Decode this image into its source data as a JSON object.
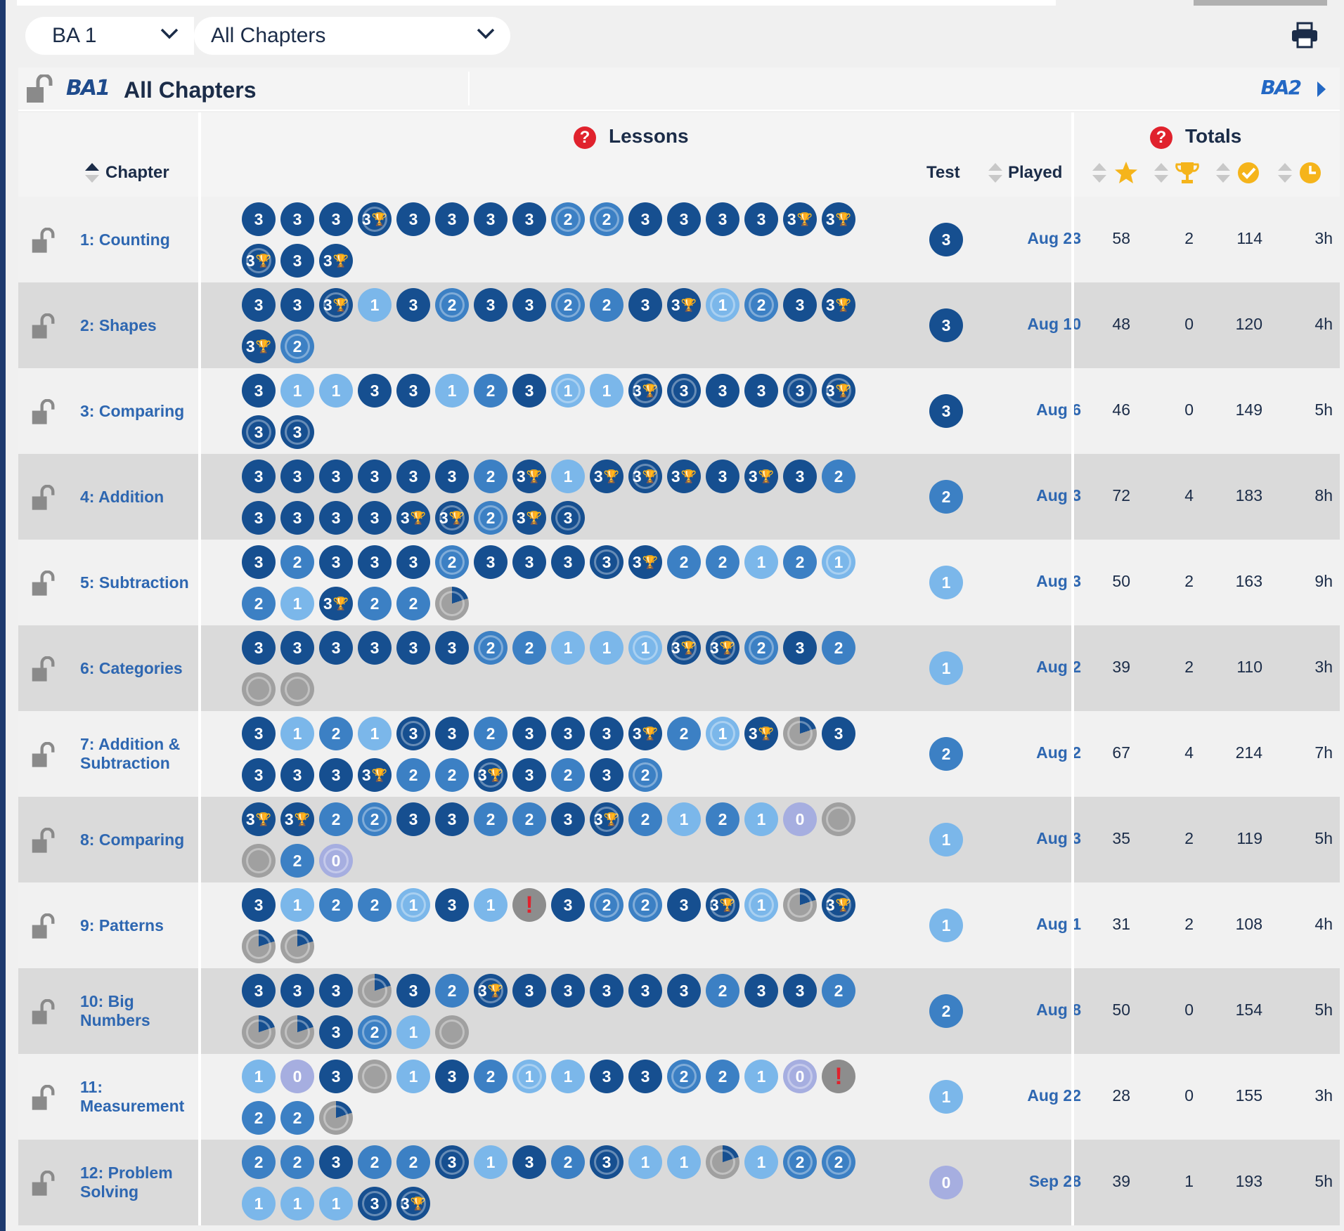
{
  "selectors": {
    "grade": "BA 1",
    "chapter": "All Chapters"
  },
  "subheader": {
    "logo_current": "BA1",
    "title": "All Chapters",
    "logo_next": "BA2"
  },
  "table": {
    "headers": {
      "chapter": "Chapter",
      "lessons": "Lessons",
      "test": "Test",
      "played": "Played",
      "totals": "Totals"
    },
    "totals_icons": [
      "star-icon",
      "trophy-icon",
      "check-icon",
      "clock-icon"
    ],
    "level_colors": {
      "3": "#164f90",
      "2": "#3c80c4",
      "1": "#7bb7ea",
      "0": "#a6aee0",
      "none": "#a0a0a0"
    },
    "rows": [
      {
        "chapter": "1: Counting",
        "test": "3",
        "played": "Aug 23",
        "stars": "58",
        "trophies": "2",
        "checks": "114",
        "time": "3h",
        "lessons": [
          "3",
          "3",
          "3",
          "3T*",
          "3",
          "3",
          "3",
          "3",
          "2*",
          "2*",
          "3",
          "3",
          "3",
          "3",
          "3T",
          "3G",
          "3T*",
          "3",
          "3G"
        ]
      },
      {
        "chapter": "2: Shapes",
        "test": "3",
        "played": "Aug 10",
        "stars": "48",
        "trophies": "0",
        "checks": "120",
        "time": "4h",
        "lessons": [
          "3",
          "3",
          "3T*",
          "1",
          "3",
          "2*",
          "3",
          "3",
          "2*",
          "2",
          "3",
          "3T",
          "1*",
          "2*",
          "3",
          "3T",
          "3T",
          "2*"
        ]
      },
      {
        "chapter": "3: Comparing",
        "test": "3",
        "played": "Aug 6",
        "stars": "46",
        "trophies": "0",
        "checks": "149",
        "time": "5h",
        "lessons": [
          "3",
          "1",
          "1",
          "3",
          "3",
          "1",
          "2",
          "3",
          "1*",
          "1",
          "3T*",
          "3*",
          "3",
          "3",
          "3*",
          "3T*",
          "3*",
          "3*"
        ]
      },
      {
        "chapter": "4: Addition",
        "test": "2",
        "played": "Aug 3",
        "stars": "72",
        "trophies": "4",
        "checks": "183",
        "time": "8h",
        "lessons": [
          "3",
          "3",
          "3",
          "3",
          "3",
          "3",
          "2",
          "3G",
          "1",
          "3G",
          "3T*",
          "3T",
          "3",
          "3G",
          "3",
          "2",
          "3",
          "3",
          "3",
          "3",
          "3T",
          "3T*",
          "2*",
          "3G",
          "3*"
        ]
      },
      {
        "chapter": "5: Subtraction",
        "test": "1",
        "played": "Aug 3",
        "stars": "50",
        "trophies": "2",
        "checks": "163",
        "time": "9h",
        "lessons": [
          "3",
          "2",
          "3",
          "3",
          "3",
          "2*",
          "3",
          "3",
          "3",
          "3*",
          "3G",
          "2",
          "2",
          "1",
          "2",
          "1*",
          "2",
          "1",
          "3G",
          "2",
          "2",
          "P"
        ]
      },
      {
        "chapter": "6: Categories",
        "test": "1",
        "played": "Aug 2",
        "stars": "39",
        "trophies": "2",
        "checks": "110",
        "time": "3h",
        "lessons": [
          "3",
          "3",
          "3",
          "3",
          "3",
          "3",
          "2*",
          "2",
          "1",
          "1",
          "1*",
          "3G*",
          "3G*",
          "2*",
          "3",
          "2",
          "N",
          "N"
        ]
      },
      {
        "chapter": "7: Addition & Subtraction",
        "test": "2",
        "played": "Aug 2",
        "stars": "67",
        "trophies": "4",
        "checks": "214",
        "time": "7h",
        "lessons": [
          "3",
          "1",
          "2",
          "1",
          "3*",
          "3",
          "2",
          "3",
          "3",
          "3",
          "3G",
          "2",
          "1*",
          "3G",
          "P",
          "3",
          "3",
          "3",
          "3",
          "3G",
          "2",
          "2",
          "3G*",
          "3",
          "2",
          "3",
          "2*"
        ]
      },
      {
        "chapter": "8: Comparing",
        "test": "1",
        "played": "Aug 3",
        "stars": "35",
        "trophies": "2",
        "checks": "119",
        "time": "5h",
        "lessons": [
          "3G",
          "3G",
          "2",
          "2*",
          "3",
          "3",
          "2",
          "2",
          "3",
          "3T*",
          "2",
          "1",
          "2",
          "1",
          "0",
          "N",
          "N",
          "2",
          "0*"
        ]
      },
      {
        "chapter": "9: Patterns",
        "test": "1",
        "played": "Aug 1",
        "stars": "31",
        "trophies": "2",
        "checks": "108",
        "time": "4h",
        "lessons": [
          "3",
          "1",
          "2",
          "2",
          "1*",
          "3",
          "1",
          "!",
          "3",
          "2*",
          "2*",
          "3",
          "3G*",
          "1*",
          "P",
          "3G*",
          "P",
          "P"
        ]
      },
      {
        "chapter": "10: Big Numbers",
        "test": "2",
        "played": "Aug 8",
        "stars": "50",
        "trophies": "0",
        "checks": "154",
        "time": "5h",
        "lessons": [
          "3",
          "3",
          "3",
          "P",
          "3",
          "2",
          "3T*",
          "3",
          "3",
          "3",
          "3",
          "3",
          "2",
          "3",
          "3",
          "2",
          "P",
          "P",
          "3",
          "2*",
          "1",
          "N"
        ]
      },
      {
        "chapter": "11: Measurement",
        "test": "1",
        "played": "Aug 22",
        "stars": "28",
        "trophies": "0",
        "checks": "155",
        "time": "3h",
        "lessons": [
          "1",
          "0",
          "3",
          "N",
          "1",
          "3",
          "2",
          "1*",
          "1",
          "3",
          "3",
          "2*",
          "2",
          "1",
          "0*",
          "!",
          "2",
          "2",
          "P"
        ]
      },
      {
        "chapter": "12: Problem Solving",
        "test": "0",
        "played": "Sep 28",
        "stars": "39",
        "trophies": "1",
        "checks": "193",
        "time": "5h",
        "lessons": [
          "2",
          "2",
          "3",
          "2",
          "2",
          "3*",
          "1",
          "3",
          "2",
          "3*",
          "1",
          "1",
          "P",
          "1",
          "2*",
          "2*",
          "1",
          "1",
          "1",
          "3*",
          "3G*"
        ]
      }
    ]
  }
}
